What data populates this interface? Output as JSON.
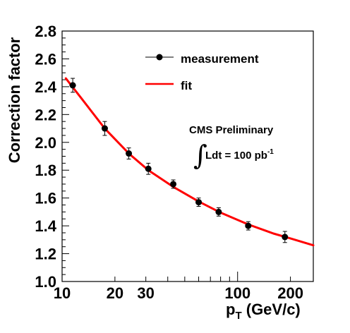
{
  "chart_data": {
    "type": "scatter",
    "x_scale": "log",
    "xlim": [
      10,
      270
    ],
    "ylim": [
      1.0,
      2.8
    ],
    "xlabel_main": "p",
    "xlabel_sub": "T",
    "xlabel_unit": " (GeV/c)",
    "ylabel": "Correction factor",
    "x_ticks": [
      {
        "value": 10,
        "label": "10"
      },
      {
        "value": 20,
        "label": "20"
      },
      {
        "value": 30,
        "label": "30"
      },
      {
        "value": 100,
        "label": "100"
      },
      {
        "value": 200,
        "label": "200"
      }
    ],
    "y_ticks": [
      "1.0",
      "1.2",
      "1.4",
      "1.6",
      "1.8",
      "2.0",
      "2.2",
      "2.4",
      "2.6",
      "2.8"
    ],
    "legend": {
      "position": "top-right",
      "measurement_label": "measurement",
      "fit_label": "fit"
    },
    "annotation": {
      "line1": "CMS Preliminary",
      "integral_symbol": "∫",
      "lumi_text": "Ldt = 100 pb",
      "lumi_exponent": "-1"
    },
    "series": [
      {
        "name": "measurement",
        "color": "#000000",
        "points": [
          {
            "x": 11.5,
            "y": 2.41,
            "yerr": 0.05,
            "xerr": 0.5
          },
          {
            "x": 17.5,
            "y": 2.1,
            "yerr": 0.05,
            "xerr": 0.7
          },
          {
            "x": 24.0,
            "y": 1.92,
            "yerr": 0.04,
            "xerr": 0.9
          },
          {
            "x": 31.0,
            "y": 1.81,
            "yerr": 0.04,
            "xerr": 1.2
          },
          {
            "x": 43.0,
            "y": 1.7,
            "yerr": 0.03,
            "xerr": 1.6
          },
          {
            "x": 60.0,
            "y": 1.57,
            "yerr": 0.03,
            "xerr": 2.2
          },
          {
            "x": 78.0,
            "y": 1.5,
            "yerr": 0.03,
            "xerr": 3.0
          },
          {
            "x": 115.0,
            "y": 1.4,
            "yerr": 0.03,
            "xerr": 4.5
          },
          {
            "x": 186.0,
            "y": 1.32,
            "yerr": 0.04,
            "xerr": 7.0
          }
        ]
      },
      {
        "name": "fit",
        "color": "#ff0000",
        "curve": [
          {
            "x": 10.5,
            "y": 2.46
          },
          {
            "x": 13.0,
            "y": 2.31
          },
          {
            "x": 17.5,
            "y": 2.1
          },
          {
            "x": 24.0,
            "y": 1.92
          },
          {
            "x": 31.0,
            "y": 1.8
          },
          {
            "x": 43.0,
            "y": 1.68
          },
          {
            "x": 60.0,
            "y": 1.575
          },
          {
            "x": 80.0,
            "y": 1.495
          },
          {
            "x": 115.0,
            "y": 1.41
          },
          {
            "x": 160.0,
            "y": 1.345
          },
          {
            "x": 200.0,
            "y": 1.31
          },
          {
            "x": 270.0,
            "y": 1.26
          }
        ]
      }
    ]
  }
}
